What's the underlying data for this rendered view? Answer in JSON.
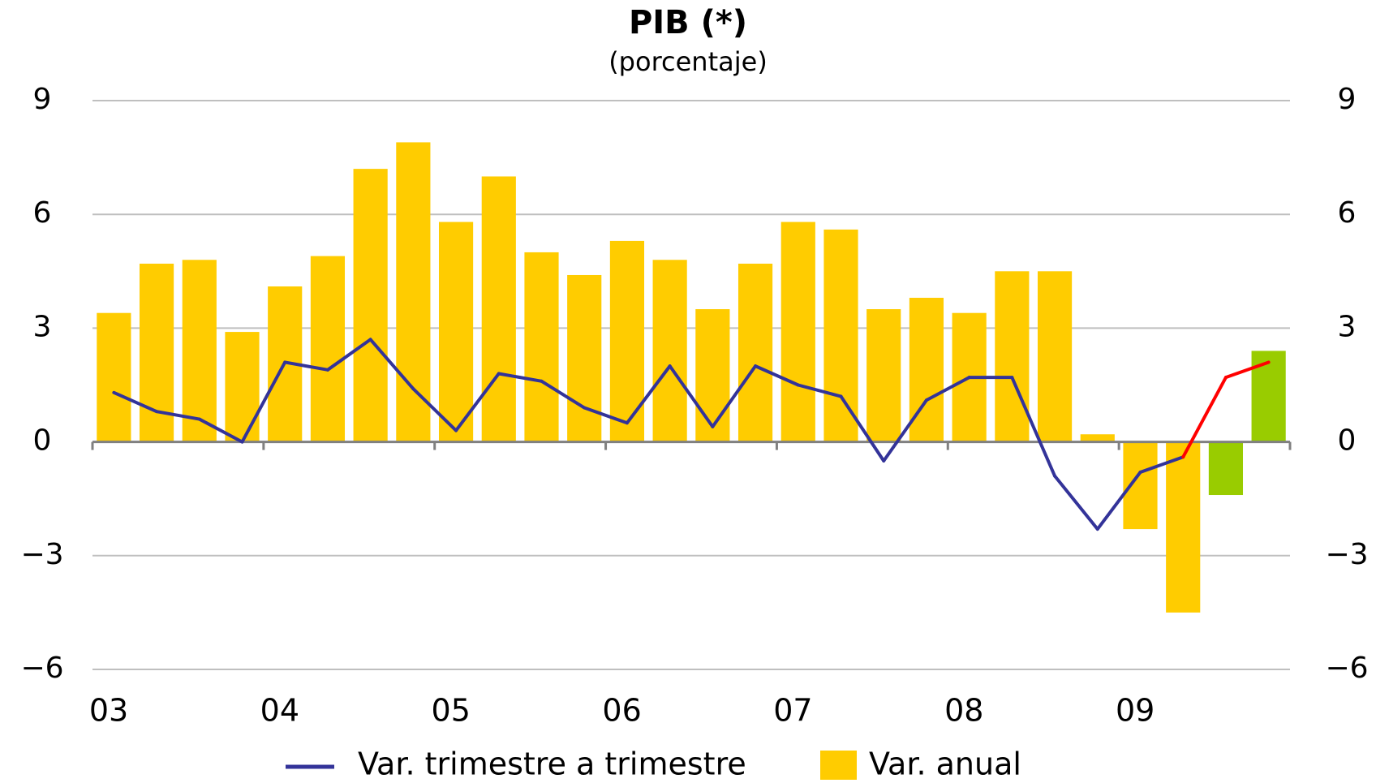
{
  "chart_data": {
    "type": "bar",
    "title": "PIB (*)",
    "subtitle": "(porcentaje)",
    "categories": [
      "03",
      null,
      null,
      null,
      "04",
      null,
      null,
      null,
      "05",
      null,
      null,
      null,
      "06",
      null,
      null,
      null,
      "07",
      null,
      null,
      null,
      "08",
      null,
      null,
      null,
      "09",
      null,
      null,
      null
    ],
    "series": [
      {
        "name": "Var. anual",
        "type": "bar",
        "color": "#ffcc00",
        "colors": [
          "#ffcc00",
          "#ffcc00",
          "#ffcc00",
          "#ffcc00",
          "#ffcc00",
          "#ffcc00",
          "#ffcc00",
          "#ffcc00",
          "#ffcc00",
          "#ffcc00",
          "#ffcc00",
          "#ffcc00",
          "#ffcc00",
          "#ffcc00",
          "#ffcc00",
          "#ffcc00",
          "#ffcc00",
          "#ffcc00",
          "#ffcc00",
          "#ffcc00",
          "#ffcc00",
          "#ffcc00",
          "#ffcc00",
          "#ffcc00",
          "#ffcc00",
          "#ffcc00",
          "#99cc00",
          "#99cc00"
        ],
        "values": [
          3.4,
          4.7,
          4.8,
          2.9,
          4.1,
          4.9,
          7.2,
          7.9,
          5.8,
          7.0,
          5.0,
          4.4,
          5.3,
          4.8,
          3.5,
          4.7,
          5.8,
          5.6,
          3.5,
          3.8,
          3.4,
          4.5,
          4.5,
          0.2,
          -2.3,
          -4.5,
          -1.4,
          2.4
        ]
      },
      {
        "name": "Var. trimestre a trimestre",
        "type": "line",
        "color": "#333399",
        "colors": [
          "#333399",
          "#333399",
          "#333399",
          "#333399",
          "#333399",
          "#333399",
          "#333399",
          "#333399",
          "#333399",
          "#333399",
          "#333399",
          "#333399",
          "#333399",
          "#333399",
          "#333399",
          "#333399",
          "#333399",
          "#333399",
          "#333399",
          "#333399",
          "#333399",
          "#333399",
          "#333399",
          "#333399",
          "#333399",
          "#333399",
          "#ff0000",
          "#ff0000"
        ],
        "values": [
          1.3,
          0.8,
          0.6,
          0.0,
          2.1,
          1.9,
          2.7,
          1.4,
          0.3,
          1.8,
          1.6,
          0.9,
          0.5,
          2.0,
          0.4,
          2.0,
          1.5,
          1.2,
          -0.5,
          1.1,
          1.7,
          1.7,
          -0.9,
          -2.3,
          -0.8,
          -0.4,
          1.7,
          2.1
        ]
      }
    ],
    "ylim": [
      -6,
      9
    ],
    "yticks": [
      {
        "value": -6,
        "label": "−6"
      },
      {
        "value": -3,
        "label": "−3"
      },
      0,
      3,
      6,
      9
    ],
    "y2lim": [
      -6,
      9
    ],
    "y2ticks": [
      {
        "value": -6,
        "label": "−6"
      },
      {
        "value": -3,
        "label": "−3"
      },
      0,
      3,
      6,
      9
    ],
    "grid": true
  }
}
